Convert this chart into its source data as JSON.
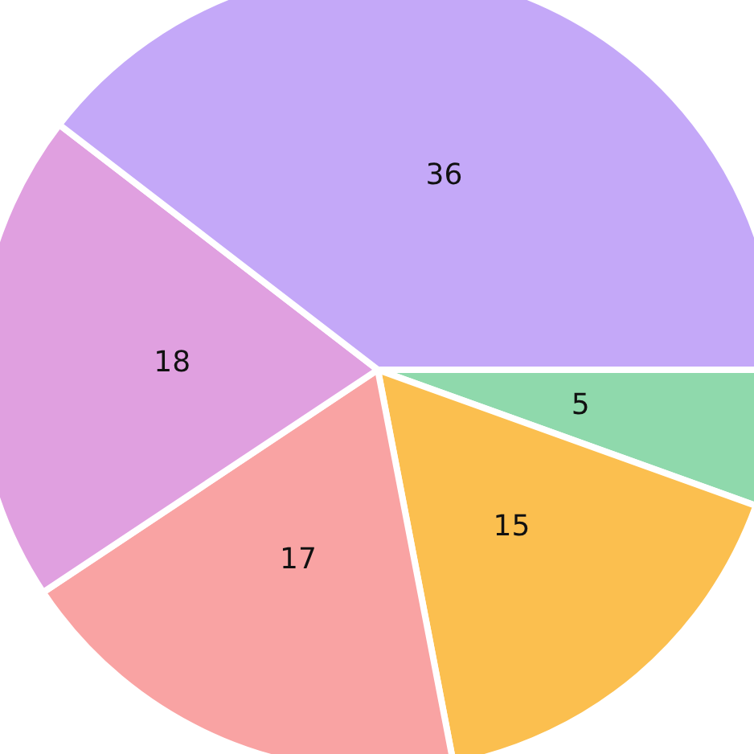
{
  "chart_data": {
    "type": "pie",
    "categories": [
      null,
      null,
      null,
      null,
      null
    ],
    "values": [
      5,
      15,
      17,
      18,
      36
    ],
    "colors": [
      "#8fd9ac",
      "#fbbf4f",
      "#f9a3a3",
      "#e0a0e0",
      "#c4a8f8"
    ],
    "data_labels": true
  }
}
